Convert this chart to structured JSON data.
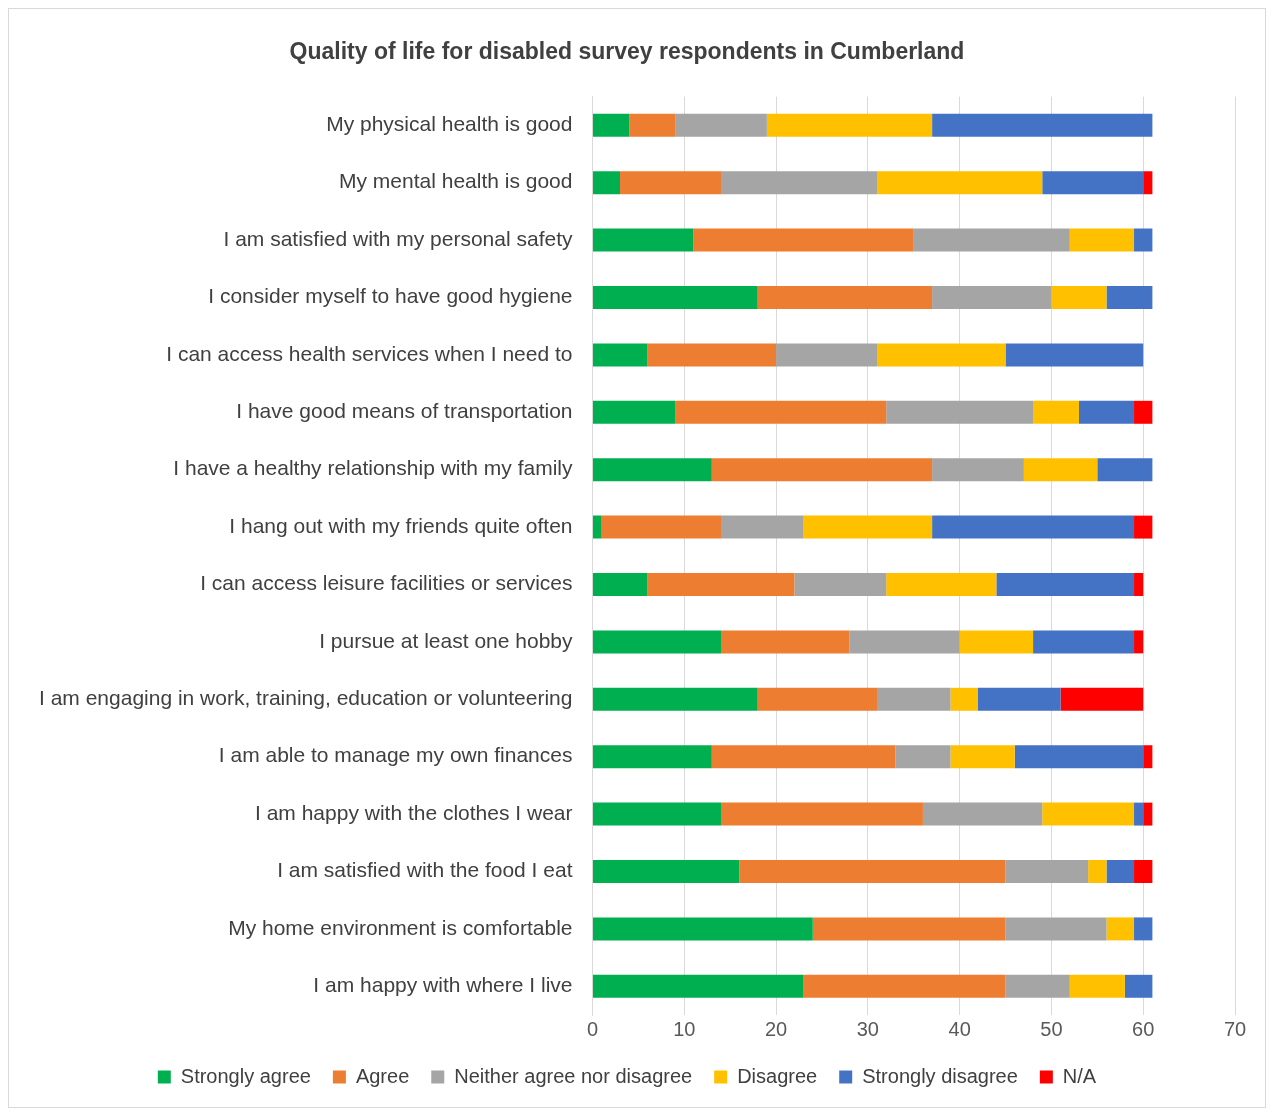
{
  "chart_data": {
    "type": "bar",
    "orientation": "horizontal",
    "stacked": true,
    "title": "Quality of life for disabled survey respondents in Cumberland",
    "categories": [
      "My physical health is good",
      "My mental health is good",
      "I am satisfied with my personal safety",
      "I consider myself to have good hygiene",
      "I can access health services when I need to",
      "I have good means of transportation",
      "I have a healthy relationship with my family",
      "I hang out with my friends quite often",
      "I can access leisure facilities or services",
      "I pursue at least one hobby",
      "I am engaging in work, training, education or volunteering",
      "I am able to manage my own finances",
      "I am happy with the clothes I wear",
      "I am satisfied with the food I eat",
      "My home environment is comfortable",
      "I am happy with where I live"
    ],
    "series": [
      {
        "name": "Strongly agree",
        "color": "#00b050",
        "values": [
          4,
          3,
          11,
          18,
          6,
          9,
          13,
          1,
          6,
          14,
          18,
          13,
          14,
          16,
          24,
          23
        ]
      },
      {
        "name": "Agree",
        "color": "#ed7d31",
        "values": [
          5,
          11,
          24,
          19,
          14,
          23,
          24,
          13,
          16,
          14,
          13,
          20,
          22,
          29,
          21,
          22
        ]
      },
      {
        "name": "Neither agree nor disagree",
        "color": "#a5a5a5",
        "values": [
          10,
          17,
          17,
          13,
          11,
          16,
          10,
          9,
          10,
          12,
          8,
          6,
          13,
          9,
          11,
          7
        ]
      },
      {
        "name": "Disagree",
        "color": "#ffc000",
        "values": [
          18,
          18,
          7,
          6,
          14,
          5,
          8,
          14,
          12,
          8,
          3,
          7,
          10,
          2,
          3,
          6
        ]
      },
      {
        "name": "Strongly disagree",
        "color": "#4472c4",
        "values": [
          24,
          11,
          2,
          5,
          15,
          6,
          6,
          22,
          15,
          11,
          9,
          14,
          1,
          3,
          2,
          3
        ]
      },
      {
        "name": "N/A",
        "color": "#ff0000",
        "values": [
          0,
          1,
          0,
          0,
          0,
          2,
          0,
          2,
          1,
          1,
          9,
          1,
          1,
          2,
          0,
          0
        ]
      }
    ],
    "xlim": [
      0,
      70
    ],
    "xticks": [
      0,
      10,
      20,
      30,
      40,
      50,
      60,
      70
    ],
    "grid": "x",
    "legend": "bottom"
  }
}
